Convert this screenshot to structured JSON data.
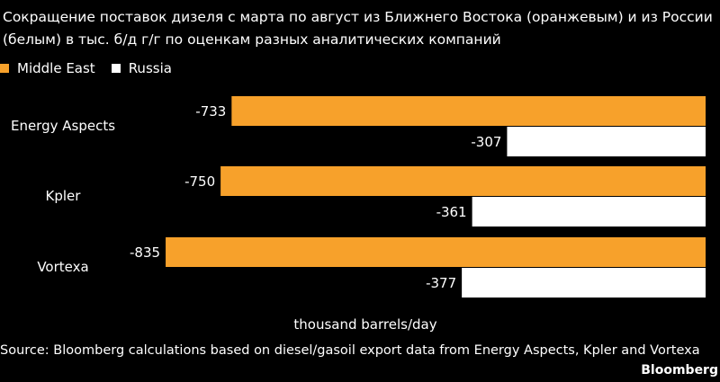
{
  "title": "Сокращение поставок дизеля с марта по август из Ближнего Востока (оранжевым) и из России (белым) в тыс. б/д г/г по оценкам разных аналитических компаний",
  "source": "Source: Bloomberg calculations based on diesel/gasoil export data from Energy Aspects, Kpler and Vortexa",
  "brand": "Bloomberg",
  "colors": {
    "middle_east": "#f7a12b",
    "russia": "#ffffff",
    "background": "#000000"
  },
  "chart_data": {
    "type": "bar",
    "orientation": "horizontal",
    "categories": [
      "Energy Aspects",
      "Kpler",
      "Vortexa"
    ],
    "series": [
      {
        "name": "Middle East",
        "values": [
          -733,
          -750,
          -835
        ]
      },
      {
        "name": "Russia",
        "values": [
          -307,
          -361,
          -377
        ]
      }
    ],
    "xlabel": "thousand barrels/day",
    "xlim": [
      -1000,
      0
    ],
    "legend": "top-left",
    "grid": false
  }
}
